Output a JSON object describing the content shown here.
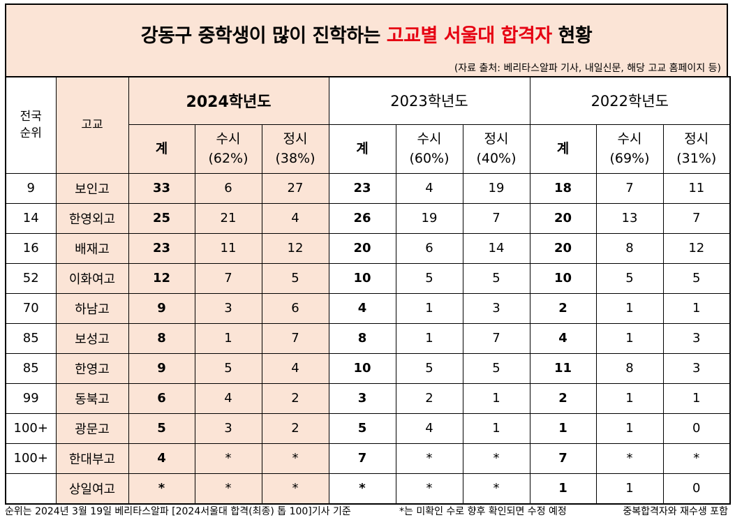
{
  "title": {
    "part1": "강동구 중학생이 많이 진학하는 ",
    "highlight": "고교별 서울대 합격자",
    "part2": " 현황",
    "highlight_color": "#e60012"
  },
  "source": "(자료 출처: 베리타스알파 기사, 내일신문, 해당 고교 홈페이지 등)",
  "table": {
    "rank_header": "전국\n순위",
    "school_header": "고교",
    "years": [
      {
        "label": "2024학년도",
        "total": "계",
        "susi": "수시\n(62%)",
        "jeongsi": "정시\n(38%)"
      },
      {
        "label": "2023학년도",
        "total": "계",
        "susi": "수시\n(60%)",
        "jeongsi": "정시\n(40%)"
      },
      {
        "label": "2022학년도",
        "total": "계",
        "susi": "수시\n(69%)",
        "jeongsi": "정시\n(31%)"
      }
    ],
    "rows": [
      {
        "rank": "9",
        "school": "보인고",
        "v": [
          "33",
          "6",
          "27",
          "23",
          "4",
          "19",
          "18",
          "7",
          "11"
        ]
      },
      {
        "rank": "14",
        "school": "한영외고",
        "v": [
          "25",
          "21",
          "4",
          "26",
          "19",
          "7",
          "20",
          "13",
          "7"
        ]
      },
      {
        "rank": "16",
        "school": "배재고",
        "v": [
          "23",
          "11",
          "12",
          "20",
          "6",
          "14",
          "20",
          "8",
          "12"
        ]
      },
      {
        "rank": "52",
        "school": "이화여고",
        "v": [
          "12",
          "7",
          "5",
          "10",
          "5",
          "5",
          "10",
          "5",
          "5"
        ]
      },
      {
        "rank": "70",
        "school": "하남고",
        "v": [
          "9",
          "3",
          "6",
          "4",
          "1",
          "3",
          "2",
          "1",
          "1"
        ]
      },
      {
        "rank": "85",
        "school": "보성고",
        "v": [
          "8",
          "1",
          "7",
          "8",
          "1",
          "7",
          "4",
          "1",
          "3"
        ]
      },
      {
        "rank": "85",
        "school": "한영고",
        "v": [
          "9",
          "5",
          "4",
          "10",
          "5",
          "5",
          "11",
          "8",
          "3"
        ]
      },
      {
        "rank": "99",
        "school": "동북고",
        "v": [
          "6",
          "4",
          "2",
          "3",
          "2",
          "1",
          "2",
          "1",
          "1"
        ]
      },
      {
        "rank": "100+",
        "school": "광문고",
        "v": [
          "5",
          "3",
          "2",
          "5",
          "4",
          "1",
          "1",
          "1",
          "0"
        ]
      },
      {
        "rank": "100+",
        "school": "한대부고",
        "v": [
          "4",
          "*",
          "*",
          "7",
          "*",
          "*",
          "7",
          "*",
          "*"
        ]
      },
      {
        "rank": "",
        "school": "상일여고",
        "v": [
          "*",
          "*",
          "*",
          "*",
          "*",
          "*",
          "1",
          "1",
          "0"
        ]
      }
    ]
  },
  "footer": {
    "left": "순위는 2024년 3월 19일 베리타스알파 [2024서울대 합격(최종) 톱 100]기사 기준",
    "middle": "*는 미확인 수로 향후 확인되면 수정 예정",
    "right": "중복합격자와 재수생 포함"
  }
}
